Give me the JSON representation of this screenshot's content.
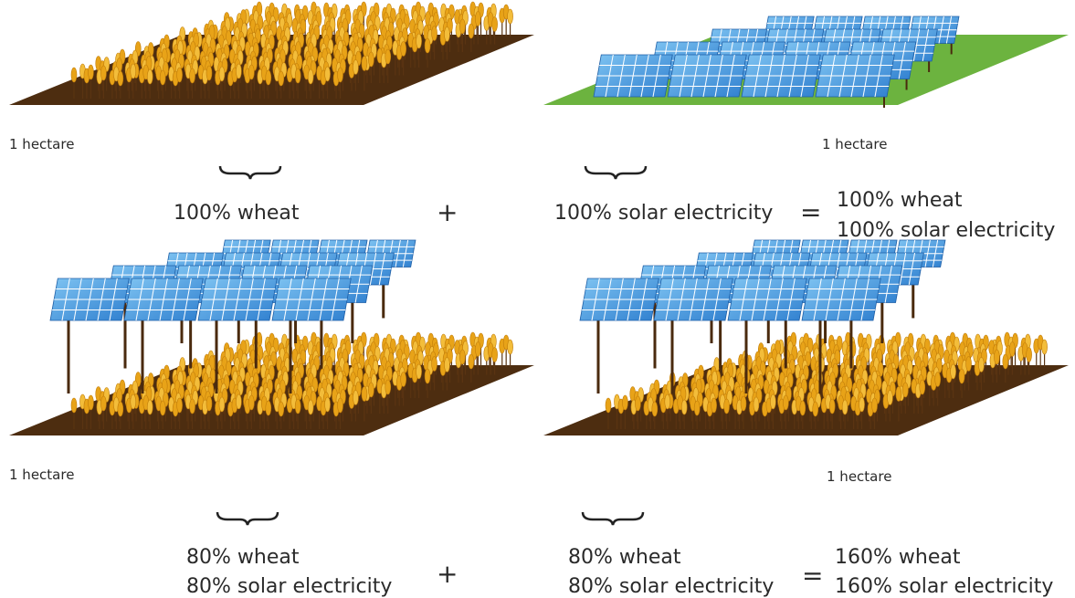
{
  "rows": [
    {
      "left": {
        "area_label": "1 hectare",
        "caption": [
          "100% wheat"
        ]
      },
      "operator_plus": "+",
      "right": {
        "area_label": "1 hectare",
        "caption": [
          "100% solar electricity"
        ]
      },
      "operator_equals": "=",
      "result": [
        "100% wheat",
        "100% solar electricity"
      ]
    },
    {
      "left": {
        "area_label": "1 hectare",
        "caption": [
          "80% wheat",
          "80% solar electricity"
        ]
      },
      "operator_plus": "+",
      "right": {
        "area_label": "1 hectare",
        "caption": [
          "80% wheat",
          "80% solar electricity"
        ]
      },
      "operator_equals": "=",
      "result": [
        "160% wheat",
        "160% solar electricity"
      ]
    }
  ]
}
